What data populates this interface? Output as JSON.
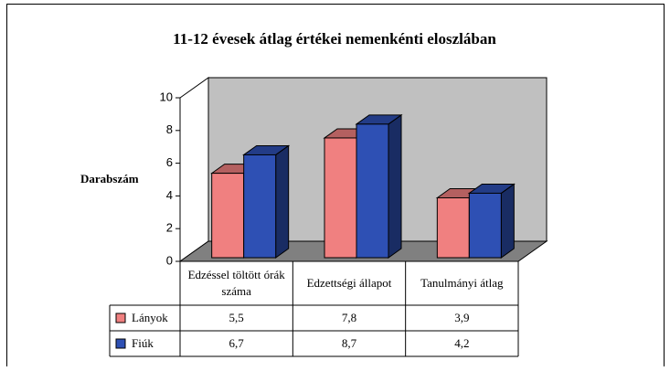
{
  "chart_data": {
    "type": "bar3d",
    "title": "11-12 évesek átlag értékei nemenkénti eloszlában",
    "y_label": "Darabszám",
    "categories": [
      "Edzéssel töltött órák száma",
      "Edzettségi állapot",
      "Tanulmányi átlag"
    ],
    "series": [
      {
        "name": "Lányok",
        "color": "#f08080",
        "values": [
          5.5,
          7.8,
          3.9
        ],
        "value_labels": [
          "5,5",
          "7,8",
          "3,9"
        ]
      },
      {
        "name": "Fiúk",
        "color": "#2e50b4",
        "values": [
          6.7,
          8.7,
          4.2
        ],
        "value_labels": [
          "6,7",
          "8,7",
          "4,2"
        ]
      }
    ],
    "ylim": [
      0,
      10
    ],
    "yticks": [
      0,
      2,
      4,
      6,
      8,
      10
    ],
    "grid": false
  }
}
